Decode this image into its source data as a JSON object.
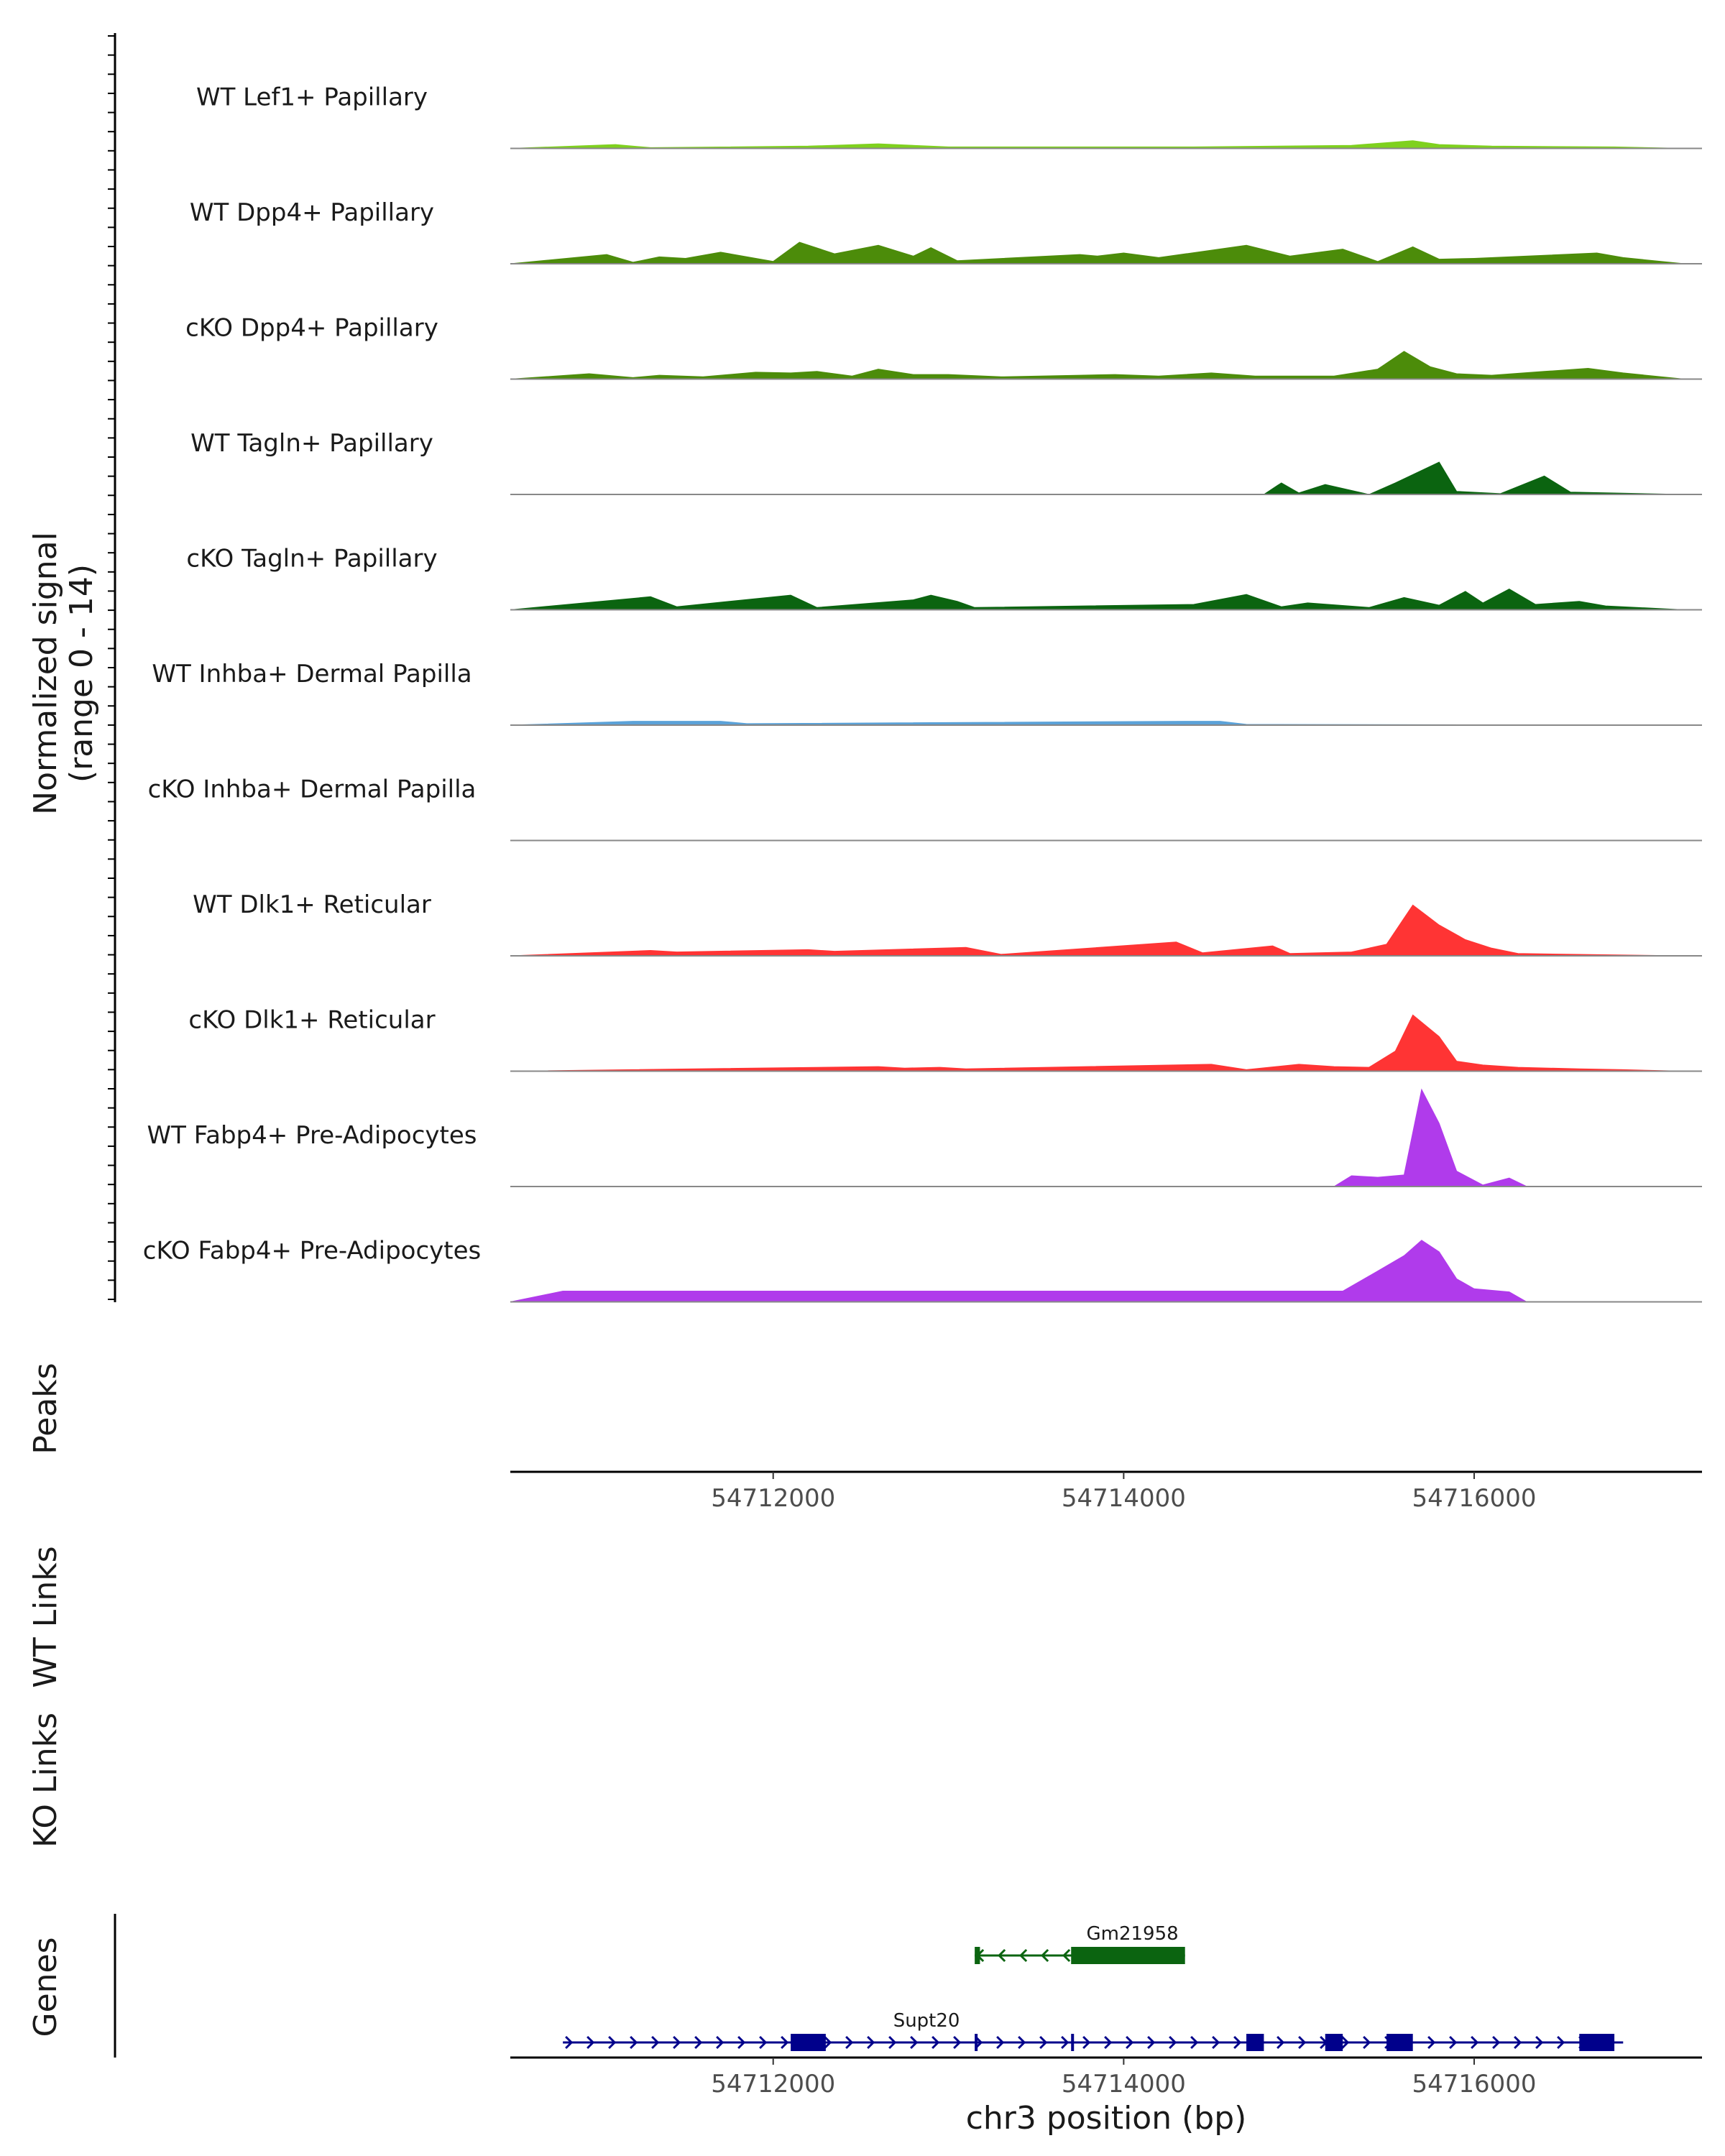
{
  "chart_data": {
    "type": "area",
    "title": "",
    "region": "chr3",
    "xlim": [
      54710500,
      54717300
    ],
    "ylim": [
      0,
      14
    ],
    "ylabel": "Normalized signal",
    "ylabel_range": "(range 0 - 14)",
    "xlabel": "chr3 position (bp)",
    "x_ticks": [
      54712000,
      54714000,
      54716000
    ],
    "x_tick_labels": [
      "54712000",
      "54714000",
      "54716000"
    ],
    "tracks": [
      {
        "name": "WT Lef1+ Papillary",
        "color": "#7FD11E",
        "points": [
          [
            54710500,
            0
          ],
          [
            54711100,
            0.5
          ],
          [
            54711300,
            0.1
          ],
          [
            54712200,
            0.3
          ],
          [
            54712600,
            0.6
          ],
          [
            54713000,
            0.2
          ],
          [
            54714400,
            0.2
          ],
          [
            54715300,
            0.4
          ],
          [
            54715650,
            1.0
          ],
          [
            54715800,
            0.5
          ],
          [
            54716100,
            0.3
          ],
          [
            54716800,
            0.2
          ],
          [
            54717200,
            0
          ]
        ]
      },
      {
        "name": "WT Dpp4+ Papillary",
        "color": "#4C8C0A",
        "points": [
          [
            54710500,
            0
          ],
          [
            54711050,
            1.2
          ],
          [
            54711200,
            0.2
          ],
          [
            54711350,
            0.9
          ],
          [
            54711500,
            0.7
          ],
          [
            54711700,
            1.5
          ],
          [
            54712000,
            0.3
          ],
          [
            54712150,
            2.8
          ],
          [
            54712350,
            1.3
          ],
          [
            54712600,
            2.4
          ],
          [
            54712800,
            1.0
          ],
          [
            54712900,
            2.1
          ],
          [
            54713050,
            0.4
          ],
          [
            54713750,
            1.2
          ],
          [
            54713850,
            1.0
          ],
          [
            54714000,
            1.4
          ],
          [
            54714200,
            0.8
          ],
          [
            54714700,
            2.4
          ],
          [
            54714950,
            1.0
          ],
          [
            54715250,
            1.9
          ],
          [
            54715450,
            0.3
          ],
          [
            54715650,
            2.2
          ],
          [
            54715800,
            0.6
          ],
          [
            54716000,
            0.7
          ],
          [
            54716700,
            1.4
          ],
          [
            54716850,
            0.8
          ],
          [
            54717200,
            0
          ]
        ]
      },
      {
        "name": "cKO Dpp4+ Papillary",
        "color": "#4C8C0A",
        "points": [
          [
            54710500,
            0
          ],
          [
            54710950,
            0.7
          ],
          [
            54711200,
            0.2
          ],
          [
            54711350,
            0.5
          ],
          [
            54711600,
            0.3
          ],
          [
            54711900,
            0.9
          ],
          [
            54712100,
            0.8
          ],
          [
            54712250,
            1.0
          ],
          [
            54712450,
            0.4
          ],
          [
            54712600,
            1.3
          ],
          [
            54712800,
            0.6
          ],
          [
            54713000,
            0.6
          ],
          [
            54713300,
            0.3
          ],
          [
            54713750,
            0.5
          ],
          [
            54713950,
            0.6
          ],
          [
            54714200,
            0.4
          ],
          [
            54714500,
            0.8
          ],
          [
            54714750,
            0.4
          ],
          [
            54715200,
            0.4
          ],
          [
            54715450,
            1.3
          ],
          [
            54715600,
            3.6
          ],
          [
            54715750,
            1.6
          ],
          [
            54715900,
            0.7
          ],
          [
            54716100,
            0.5
          ],
          [
            54716400,
            1.0
          ],
          [
            54716650,
            1.4
          ],
          [
            54716850,
            0.8
          ],
          [
            54717200,
            0
          ]
        ]
      },
      {
        "name": "WT Tagln+ Papillary",
        "color": "#0B6410",
        "points": [
          [
            54710500,
            0
          ],
          [
            54714800,
            0
          ],
          [
            54714900,
            1.5
          ],
          [
            54715000,
            0.2
          ],
          [
            54715150,
            1.3
          ],
          [
            54715400,
            0
          ],
          [
            54715550,
            1.5
          ],
          [
            54715800,
            4.2
          ],
          [
            54715900,
            0.4
          ],
          [
            54716150,
            0.1
          ],
          [
            54716400,
            2.4
          ],
          [
            54716550,
            0.3
          ],
          [
            54717200,
            0
          ]
        ]
      },
      {
        "name": "cKO Tagln+ Papillary",
        "color": "#0B6410",
        "points": [
          [
            54710500,
            0
          ],
          [
            54711300,
            1.7
          ],
          [
            54711450,
            0.4
          ],
          [
            54712100,
            1.9
          ],
          [
            54712250,
            0.3
          ],
          [
            54712800,
            1.3
          ],
          [
            54712900,
            1.9
          ],
          [
            54713050,
            1.1
          ],
          [
            54713150,
            0.3
          ],
          [
            54714400,
            0.7
          ],
          [
            54714700,
            2.0
          ],
          [
            54714900,
            0.4
          ],
          [
            54715050,
            0.9
          ],
          [
            54715400,
            0.3
          ],
          [
            54715600,
            1.6
          ],
          [
            54715800,
            0.6
          ],
          [
            54715950,
            2.4
          ],
          [
            54716050,
            0.9
          ],
          [
            54716200,
            2.7
          ],
          [
            54716350,
            0.7
          ],
          [
            54716600,
            1.1
          ],
          [
            54716750,
            0.5
          ],
          [
            54717200,
            0
          ]
        ]
      },
      {
        "name": "WT Inhba+ Dermal Papilla",
        "color": "#5BA2D8",
        "points": [
          [
            54710500,
            0
          ],
          [
            54711200,
            0.5
          ],
          [
            54711350,
            0.5
          ],
          [
            54711500,
            0.5
          ],
          [
            54711700,
            0.5
          ],
          [
            54711850,
            0.2
          ],
          [
            54714350,
            0.5
          ],
          [
            54714550,
            0.5
          ],
          [
            54714700,
            0.1
          ],
          [
            54717200,
            0
          ]
        ]
      },
      {
        "name": "cKO Inhba+ Dermal Papilla",
        "color": "#5BA2D8",
        "points": [
          [
            54710500,
            0
          ],
          [
            54717200,
            0
          ]
        ]
      },
      {
        "name": "WT Dlk1+ Reticular",
        "color": "#FF3434",
        "points": [
          [
            54710500,
            0
          ],
          [
            54711300,
            0.7
          ],
          [
            54711450,
            0.5
          ],
          [
            54712200,
            0.8
          ],
          [
            54712350,
            0.6
          ],
          [
            54713100,
            1.1
          ],
          [
            54713300,
            0.2
          ],
          [
            54714300,
            1.8
          ],
          [
            54714450,
            0.4
          ],
          [
            54714850,
            1.3
          ],
          [
            54714950,
            0.3
          ],
          [
            54715300,
            0.5
          ],
          [
            54715500,
            1.5
          ],
          [
            54715650,
            6.6
          ],
          [
            54715800,
            4.0
          ],
          [
            54715950,
            2.1
          ],
          [
            54716100,
            1.0
          ],
          [
            54716250,
            0.3
          ],
          [
            54717200,
            0
          ]
        ]
      },
      {
        "name": "cKO Dlk1+ Reticular",
        "color": "#FF3434",
        "points": [
          [
            54710500,
            0
          ],
          [
            54712600,
            0.6
          ],
          [
            54712750,
            0.4
          ],
          [
            54712950,
            0.5
          ],
          [
            54713100,
            0.3
          ],
          [
            54714500,
            0.9
          ],
          [
            54714700,
            0.2
          ],
          [
            54715000,
            0.9
          ],
          [
            54715200,
            0.6
          ],
          [
            54715400,
            0.5
          ],
          [
            54715550,
            2.6
          ],
          [
            54715650,
            7.3
          ],
          [
            54715800,
            4.5
          ],
          [
            54715900,
            1.3
          ],
          [
            54716050,
            0.8
          ],
          [
            54716250,
            0.5
          ],
          [
            54716600,
            0.3
          ],
          [
            54716850,
            0.2
          ],
          [
            54717200,
            0
          ]
        ]
      },
      {
        "name": "WT Fabp4+ Pre-Adipocytes",
        "color": "#B03BEB",
        "points": [
          [
            54710500,
            0
          ],
          [
            54715200,
            0
          ],
          [
            54715300,
            1.4
          ],
          [
            54715450,
            1.2
          ],
          [
            54715600,
            1.5
          ],
          [
            54715700,
            12.6
          ],
          [
            54715800,
            8.2
          ],
          [
            54715900,
            2.0
          ],
          [
            54716050,
            0.2
          ],
          [
            54716200,
            1.1
          ],
          [
            54716300,
            0
          ],
          [
            54717200,
            0
          ]
        ]
      },
      {
        "name": "cKO Fabp4+ Pre-Adipocytes",
        "color": "#B03BEB",
        "points": [
          [
            54710500,
            0
          ],
          [
            54710800,
            1.4
          ],
          [
            54712150,
            1.4
          ],
          [
            54712400,
            1.4
          ],
          [
            54714000,
            1.4
          ],
          [
            54714400,
            1.4
          ],
          [
            54715250,
            1.4
          ],
          [
            54715450,
            4.0
          ],
          [
            54715600,
            6.0
          ],
          [
            54715700,
            8.0
          ],
          [
            54715800,
            6.5
          ],
          [
            54715900,
            3.0
          ],
          [
            54716000,
            1.7
          ],
          [
            54716200,
            1.3
          ],
          [
            54716300,
            0
          ],
          [
            54717200,
            0
          ]
        ]
      }
    ],
    "peaks_label": "Peaks",
    "wt_links_label": "WT Links",
    "ko_links_label": "KO Links",
    "genes_label": "Genes",
    "genes": [
      {
        "name": "Gm21958",
        "strand": "-",
        "color": "#0B6410",
        "start": 54713150,
        "end": 54714350,
        "exons": [
          [
            54713150,
            54713180
          ],
          [
            54713700,
            54714350
          ]
        ]
      },
      {
        "name": "Supt20",
        "strand": "+",
        "color": "#00008B",
        "start": 54710800,
        "end": 54716850,
        "exons": [
          [
            54712100,
            54712300
          ],
          [
            54713150,
            54713165
          ],
          [
            54713700,
            54713715
          ],
          [
            54714700,
            54714800
          ],
          [
            54715150,
            54715250
          ],
          [
            54715500,
            54715650
          ],
          [
            54716600,
            54716800
          ]
        ]
      }
    ]
  }
}
